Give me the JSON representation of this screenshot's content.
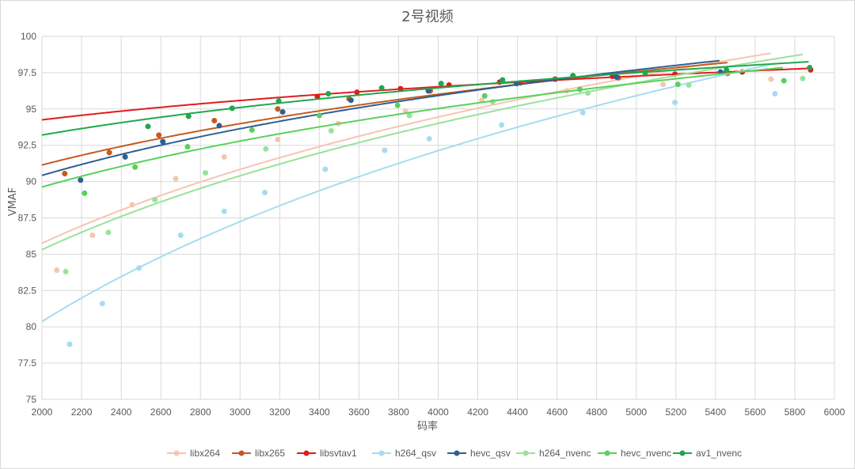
{
  "chart_data": {
    "type": "line",
    "title": "2号视频",
    "xlabel": "码率",
    "ylabel": "VMAF",
    "xlim": [
      2000,
      6000
    ],
    "ylim": [
      75,
      100
    ],
    "x_ticks": [
      2000,
      2200,
      2400,
      2600,
      2800,
      3000,
      3200,
      3400,
      3600,
      3800,
      4000,
      4200,
      4400,
      4600,
      4800,
      5000,
      5200,
      5400,
      5600,
      5800,
      6000
    ],
    "y_ticks": [
      75,
      77.5,
      80,
      82.5,
      85,
      87.5,
      90,
      92.5,
      95,
      97.5,
      100
    ],
    "grid": true,
    "legend_position": "bottom",
    "series": [
      {
        "name": "libx264",
        "color": "#f4c6b0",
        "points": [
          [
            2075,
            83.9
          ],
          [
            2255,
            86.3
          ],
          [
            2455,
            88.4
          ],
          [
            2675,
            90.2
          ],
          [
            2920,
            91.7
          ],
          [
            3190,
            92.9
          ],
          [
            3495,
            94.0
          ],
          [
            3835,
            94.85
          ],
          [
            4220,
            95.6
          ],
          [
            4650,
            96.25
          ],
          [
            5135,
            96.7
          ],
          [
            5680,
            97.05
          ]
        ]
      },
      {
        "name": "libx265",
        "color": "#c55a1e",
        "points": [
          [
            2115,
            90.55
          ],
          [
            2340,
            92.0
          ],
          [
            2590,
            93.2
          ],
          [
            2870,
            94.2
          ],
          [
            3190,
            95.0
          ],
          [
            3550,
            95.7
          ],
          [
            3960,
            96.25
          ],
          [
            4415,
            96.8
          ],
          [
            4910,
            97.15
          ],
          [
            5460,
            97.45
          ]
        ]
      },
      {
        "name": "libsvtav1",
        "color": "#e31a1c",
        "points": [
          [
            3390,
            95.85
          ],
          [
            3590,
            96.15
          ],
          [
            3810,
            96.4
          ],
          [
            4055,
            96.65
          ],
          [
            4310,
            96.85
          ],
          [
            4590,
            97.05
          ],
          [
            4880,
            97.25
          ],
          [
            5195,
            97.4
          ],
          [
            5535,
            97.55
          ],
          [
            5880,
            97.7
          ]
        ]
      },
      {
        "name": "h264_qsv",
        "color": "#a6dcf0",
        "points": [
          [
            2140,
            78.8
          ],
          [
            2305,
            81.6
          ],
          [
            2490,
            84.05
          ],
          [
            2700,
            86.3
          ],
          [
            2920,
            87.95
          ],
          [
            3125,
            89.25
          ],
          [
            3430,
            90.85
          ],
          [
            3730,
            92.15
          ],
          [
            3955,
            92.95
          ],
          [
            4320,
            93.9
          ],
          [
            4730,
            94.75
          ],
          [
            5195,
            95.45
          ],
          [
            5700,
            96.05
          ]
        ]
      },
      {
        "name": "hevc_qsv",
        "color": "#2e5f93",
        "points": [
          [
            2195,
            90.1
          ],
          [
            2420,
            91.7
          ],
          [
            2610,
            92.75
          ],
          [
            2895,
            93.85
          ],
          [
            3215,
            94.8
          ],
          [
            3560,
            95.6
          ],
          [
            3950,
            96.25
          ],
          [
            4395,
            96.75
          ],
          [
            4900,
            97.2
          ],
          [
            5425,
            97.55
          ]
        ]
      },
      {
        "name": "h264_nvenc",
        "color": "#98e29b",
        "points": [
          [
            2120,
            83.8
          ],
          [
            2335,
            86.5
          ],
          [
            2570,
            88.75
          ],
          [
            2825,
            90.6
          ],
          [
            3130,
            92.25
          ],
          [
            3460,
            93.5
          ],
          [
            3855,
            94.55
          ],
          [
            4275,
            95.5
          ],
          [
            4755,
            96.1
          ],
          [
            5265,
            96.65
          ],
          [
            5840,
            97.1
          ]
        ]
      },
      {
        "name": "hevc_nvenc",
        "color": "#57d15b",
        "points": [
          [
            2215,
            89.2
          ],
          [
            2470,
            91.0
          ],
          [
            2735,
            92.4
          ],
          [
            3060,
            93.55
          ],
          [
            3400,
            94.55
          ],
          [
            3795,
            95.25
          ],
          [
            4235,
            95.9
          ],
          [
            4715,
            96.35
          ],
          [
            5210,
            96.7
          ],
          [
            5745,
            96.95
          ]
        ]
      },
      {
        "name": "av1_nvenc",
        "color": "#1ea84d",
        "points": [
          [
            2535,
            93.8
          ],
          [
            2740,
            94.5
          ],
          [
            2960,
            95.05
          ],
          [
            3195,
            95.55
          ],
          [
            3445,
            96.05
          ],
          [
            3715,
            96.45
          ],
          [
            4015,
            96.75
          ],
          [
            4325,
            97.0
          ],
          [
            4680,
            97.3
          ],
          [
            5045,
            97.5
          ],
          [
            5455,
            97.7
          ],
          [
            5875,
            97.85
          ]
        ]
      }
    ]
  }
}
